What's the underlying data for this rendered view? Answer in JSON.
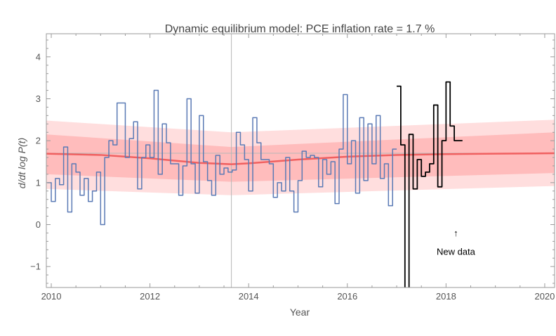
{
  "chart_data": {
    "type": "line",
    "title": "Dynamic equilibrium model: PCE inflation rate = 1.7 %",
    "xlabel": "Year",
    "ylabel": "d/dt log P(t)",
    "xlim": [
      2009.9,
      2020.2
    ],
    "ylim": [
      -1.5,
      4.55
    ],
    "x_ticks": [
      2010,
      2012,
      2014,
      2016,
      2018,
      2020
    ],
    "y_ticks": [
      -1,
      0,
      1,
      2,
      3,
      4
    ],
    "grid": false,
    "reference_lines": {
      "horizontal_y": 1.7,
      "vertical_x": 2013.65
    },
    "colors": {
      "historical": "#5a7ab5",
      "new_data": "#000000",
      "model_line": "#f06060",
      "band_inner": "#ffbcbc",
      "band_outer": "#ffdede",
      "reference": "#b8b8b8",
      "frame": "#9a9a9a"
    },
    "series": [
      {
        "key": "historical",
        "step": true,
        "x": [
          2009.917,
          2010.0,
          2010.083,
          2010.167,
          2010.25,
          2010.333,
          2010.417,
          2010.5,
          2010.583,
          2010.667,
          2010.75,
          2010.833,
          2010.917,
          2011.0,
          2011.083,
          2011.167,
          2011.25,
          2011.333,
          2011.417,
          2011.5,
          2011.583,
          2011.667,
          2011.75,
          2011.833,
          2011.917,
          2012.0,
          2012.083,
          2012.167,
          2012.25,
          2012.333,
          2012.417,
          2012.5,
          2012.583,
          2012.667,
          2012.75,
          2012.833,
          2012.917,
          2013.0,
          2013.083,
          2013.167,
          2013.25,
          2013.333,
          2013.417,
          2013.5,
          2013.583,
          2013.667,
          2013.75,
          2013.833,
          2013.917,
          2014.0,
          2014.083,
          2014.167,
          2014.25,
          2014.333,
          2014.417,
          2014.5,
          2014.583,
          2014.667,
          2014.75,
          2014.833,
          2014.917,
          2015.0,
          2015.083,
          2015.167,
          2015.25,
          2015.333,
          2015.417,
          2015.5,
          2015.583,
          2015.667,
          2015.75,
          2015.833,
          2015.917,
          2016.0,
          2016.083,
          2016.167,
          2016.25,
          2016.333,
          2016.417,
          2016.5,
          2016.583,
          2016.667,
          2016.75,
          2016.833,
          2016.917
        ],
        "values": [
          1.0,
          0.55,
          1.1,
          0.95,
          1.85,
          0.3,
          1.45,
          1.25,
          0.7,
          1.1,
          0.55,
          0.8,
          1.25,
          0.0,
          1.6,
          2.0,
          1.9,
          2.9,
          2.9,
          1.6,
          2.05,
          2.45,
          0.85,
          1.6,
          1.9,
          1.6,
          3.2,
          1.2,
          2.4,
          1.95,
          1.45,
          1.45,
          0.7,
          1.4,
          3.0,
          1.45,
          0.75,
          2.6,
          1.5,
          1.05,
          0.7,
          1.65,
          1.2,
          1.35,
          1.25,
          1.3,
          2.2,
          1.9,
          1.55,
          0.8,
          2.55,
          1.95,
          1.55,
          1.55,
          1.45,
          0.65,
          1.0,
          0.8,
          1.6,
          0.8,
          0.3,
          1.05,
          1.75,
          1.6,
          1.65,
          1.6,
          0.9,
          1.55,
          1.2,
          1.5,
          0.5,
          1.8,
          3.1,
          1.45,
          2.0,
          0.75,
          2.55,
          1.05,
          2.4,
          1.45,
          2.6,
          1.1,
          1.45,
          0.45,
          1.8
        ]
      },
      {
        "key": "new_data",
        "step": true,
        "x": [
          2017.0,
          2017.083,
          2017.167,
          2017.25,
          2017.333,
          2017.417,
          2017.5,
          2017.583,
          2017.667,
          2017.75,
          2017.833,
          2017.917,
          2018.0,
          2018.083,
          2018.167,
          2018.25
        ],
        "values": [
          3.3,
          1.9,
          -1.6,
          2.15,
          0.85,
          1.55,
          1.15,
          1.25,
          1.45,
          2.85,
          0.9,
          2.0,
          3.4,
          2.35,
          2.0,
          2.0
        ]
      },
      {
        "key": "model_line",
        "x": [
          2009.9,
          2011.0,
          2012.0,
          2013.0,
          2013.65,
          2014.0,
          2015.0,
          2016.0,
          2017.0,
          2018.0,
          2019.0,
          2020.2
        ],
        "values": [
          1.69,
          1.66,
          1.58,
          1.47,
          1.44,
          1.46,
          1.55,
          1.62,
          1.66,
          1.68,
          1.69,
          1.7
        ]
      }
    ],
    "bands": [
      {
        "level": "outer",
        "x": [
          2009.9,
          2013.65,
          2020.2
        ],
        "lower": [
          0.85,
          0.7,
          0.92
        ],
        "upper": [
          2.48,
          2.2,
          2.5
        ]
      },
      {
        "level": "inner",
        "x": [
          2009.9,
          2013.65,
          2020.2
        ],
        "lower": [
          1.2,
          1.02,
          1.23
        ],
        "upper": [
          2.15,
          1.85,
          2.2
        ]
      }
    ],
    "annotations": [
      {
        "text": "↑",
        "x": 2018.2,
        "y": -0.28
      },
      {
        "text": "New data",
        "x": 2018.2,
        "y": -0.72
      }
    ]
  }
}
